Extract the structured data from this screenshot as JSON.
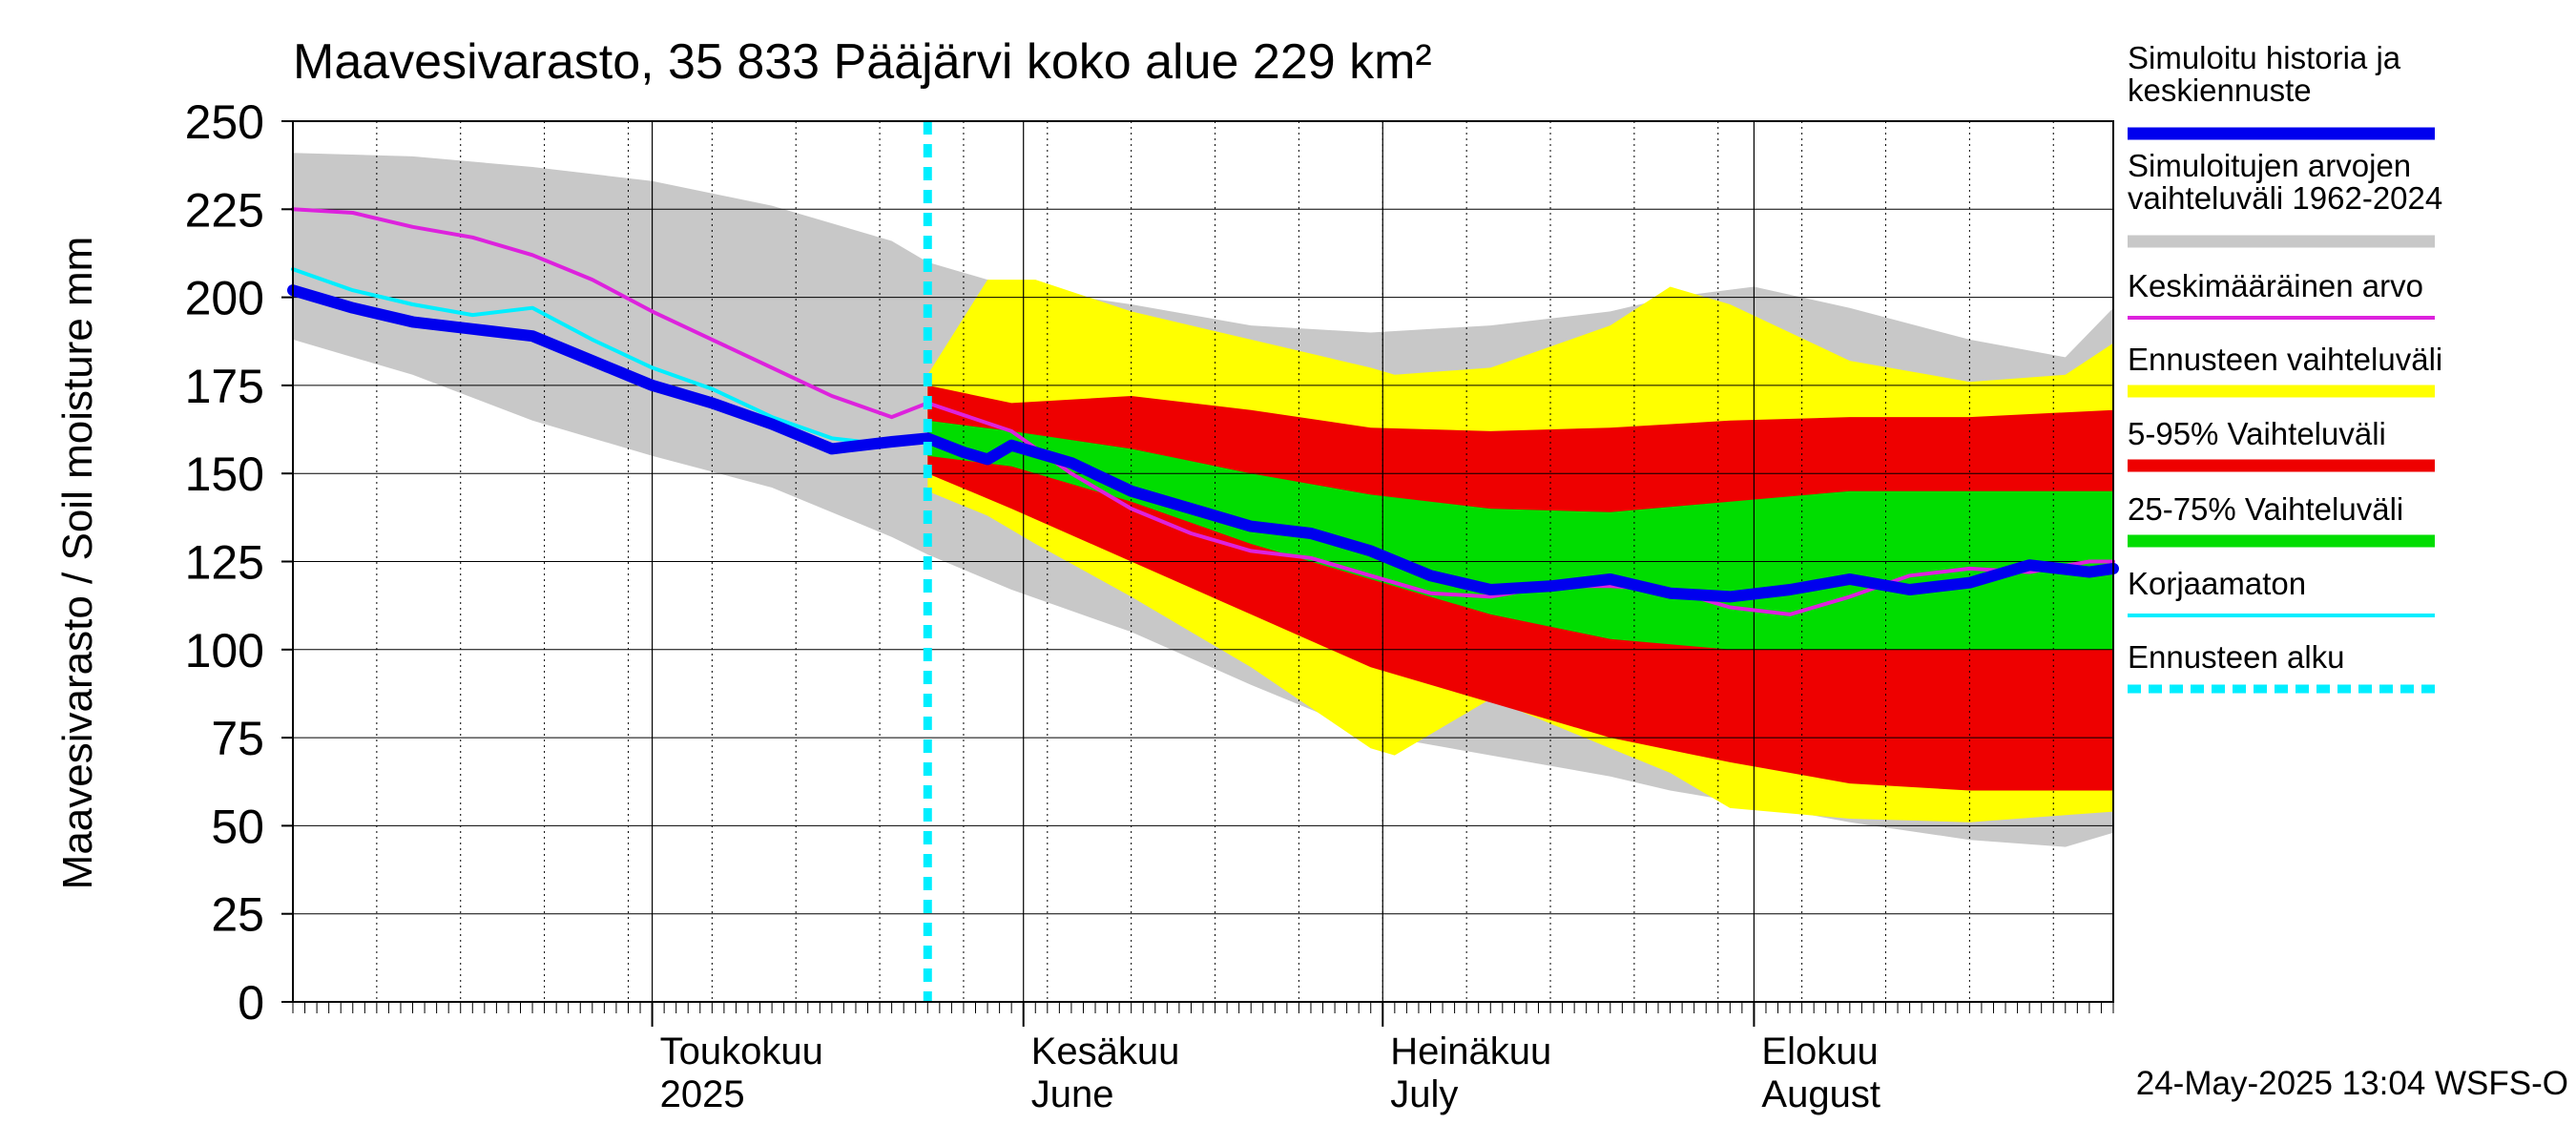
{
  "chart_data": {
    "type": "area",
    "title": "Maavesivarasto, 35 833 Pääjärvi koko alue 229 km²",
    "ylabel": "Maavesivarasto / Soil moisture   mm",
    "ylim": [
      0,
      250
    ],
    "yticks": [
      0,
      25,
      50,
      75,
      100,
      125,
      150,
      175,
      200,
      225,
      250
    ],
    "x_start": "2025-04-01",
    "x_end": "2025-08-31",
    "forecast_start_day": 53,
    "month_starts": [
      30,
      61,
      91,
      122
    ],
    "month_labels": [
      {
        "day": 30,
        "line1": "Toukokuu",
        "line2": "2025"
      },
      {
        "day": 61,
        "line1": "Kesäkuu",
        "line2": "June"
      },
      {
        "day": 91,
        "line1": "Heinäkuu",
        "line2": "July"
      },
      {
        "day": 122,
        "line1": "Elokuu",
        "line2": "August"
      }
    ],
    "timestamp": "24-May-2025 13:04 WSFS-O",
    "legend": [
      {
        "key": "history",
        "label": "Simuloitu historia ja keskiennuste",
        "color": "#0000ee",
        "style": "thick"
      },
      {
        "key": "hist_range",
        "label": "Simuloitujen arvojen vaihteluväli 1962-2024",
        "color": "#c8c8c8",
        "style": "band"
      },
      {
        "key": "mean",
        "label": "Keskimääräinen arvo",
        "color": "#dd22dd",
        "style": "line"
      },
      {
        "key": "fc_range",
        "label": "Ennusteen vaihteluväli",
        "color": "#ffff00",
        "style": "band"
      },
      {
        "key": "p5_95",
        "label": "5-95% Vaihteluväli",
        "color": "#ee0000",
        "style": "band"
      },
      {
        "key": "p25_75",
        "label": "25-75% Vaihteluväli",
        "color": "#00dd00",
        "style": "band"
      },
      {
        "key": "uncorrected",
        "label": "Korjaamaton",
        "color": "#00eeff",
        "style": "line"
      },
      {
        "key": "fc_start",
        "label": "Ennusteen alku",
        "color": "#00eeff",
        "style": "dashed"
      }
    ],
    "series": {
      "hist_range": {
        "x": [
          0,
          10,
          20,
          30,
          40,
          50,
          53,
          60,
          70,
          80,
          90,
          100,
          110,
          115,
          122,
          130,
          140,
          148,
          152
        ],
        "upper": [
          241,
          240,
          237,
          233,
          226,
          216,
          210,
          203,
          198,
          192,
          190,
          192,
          196,
          200,
          203,
          197,
          188,
          183,
          197
        ],
        "lower": [
          188,
          178,
          165,
          155,
          146,
          132,
          127,
          117,
          105,
          90,
          76,
          70,
          64,
          60,
          56,
          51,
          46,
          44,
          48
        ]
      },
      "fc_range": {
        "x": [
          53,
          58,
          62,
          70,
          80,
          90,
          92,
          100,
          110,
          115,
          120,
          130,
          140,
          148,
          152
        ],
        "upper": [
          178,
          205,
          205,
          196,
          188,
          180,
          178,
          180,
          192,
          203,
          198,
          182,
          176,
          178,
          187
        ],
        "lower": [
          145,
          138,
          130,
          115,
          95,
          72,
          70,
          86,
          72,
          65,
          55,
          52,
          51,
          53,
          54
        ]
      },
      "p5_95": {
        "x": [
          53,
          60,
          70,
          80,
          90,
          100,
          110,
          120,
          130,
          140,
          152
        ],
        "upper": [
          175,
          170,
          172,
          168,
          163,
          162,
          163,
          165,
          166,
          166,
          168
        ],
        "lower": [
          150,
          140,
          125,
          110,
          95,
          85,
          75,
          68,
          62,
          60,
          60
        ]
      },
      "p25_75": {
        "x": [
          53,
          60,
          70,
          80,
          90,
          100,
          110,
          120,
          130,
          140,
          152
        ],
        "upper": [
          165,
          162,
          157,
          150,
          144,
          140,
          139,
          142,
          145,
          145,
          145
        ],
        "lower": [
          155,
          152,
          142,
          130,
          120,
          110,
          103,
          100,
          100,
          100,
          100
        ]
      },
      "mean": {
        "x": [
          0,
          5,
          10,
          15,
          20,
          25,
          30,
          35,
          40,
          45,
          50,
          53,
          60,
          65,
          70,
          75,
          80,
          85,
          90,
          95,
          100,
          105,
          110,
          115,
          120,
          125,
          130,
          135,
          140,
          145,
          150,
          152
        ],
        "values": [
          225,
          224,
          220,
          217,
          212,
          205,
          196,
          188,
          180,
          172,
          166,
          170,
          162,
          150,
          140,
          133,
          128,
          126,
          121,
          116,
          115,
          118,
          118,
          117,
          112,
          110,
          115,
          121,
          123,
          122,
          125,
          125
        ]
      },
      "history": {
        "x": [
          0,
          5,
          10,
          15,
          20,
          25,
          30,
          35,
          40,
          45,
          50,
          53,
          56,
          58,
          60,
          65,
          70,
          75,
          80,
          85,
          90,
          95,
          100,
          105,
          110,
          115,
          120,
          125,
          130,
          135,
          140,
          145,
          150,
          152
        ],
        "values": [
          202,
          197,
          193,
          191,
          189,
          182,
          175,
          170,
          164,
          157,
          159,
          160,
          156,
          154,
          158,
          153,
          145,
          140,
          135,
          133,
          128,
          121,
          117,
          118,
          120,
          116,
          115,
          117,
          120,
          117,
          119,
          124,
          122,
          123
        ]
      },
      "uncorrected": {
        "x": [
          0,
          5,
          10,
          15,
          20,
          25,
          30,
          35,
          40,
          45,
          50,
          53
        ],
        "values": [
          208,
          202,
          198,
          195,
          197,
          188,
          180,
          174,
          166,
          160,
          158,
          161
        ]
      }
    }
  }
}
